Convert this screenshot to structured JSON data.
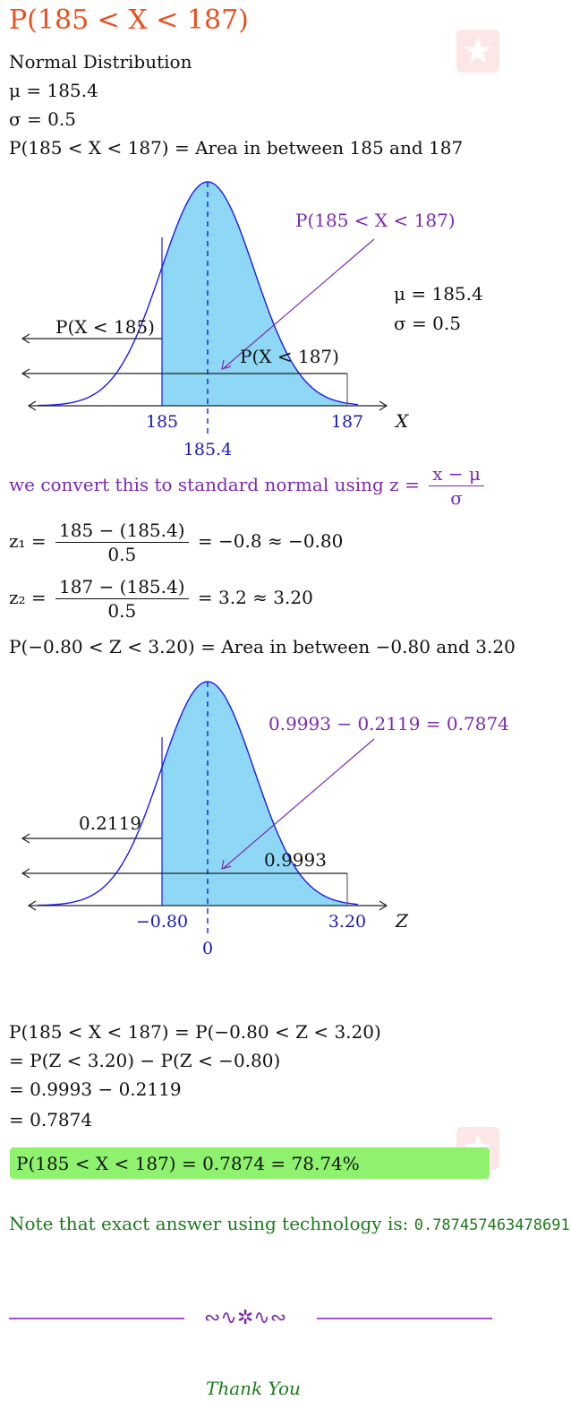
{
  "title": "P(185 < X < 187)",
  "distribution_name": "Normal Distribution",
  "mu_line": "μ = 185.4",
  "sigma_line": "σ = 0.5",
  "prob_area_line": "P(185 < X < 187) = Area in between 185 and 187",
  "plot1": {
    "top_label": "P(185 < X < 187)",
    "mu_label": "μ = 185.4",
    "sigma_label": "σ = 0.5",
    "left_label": "P(X < 185)",
    "right_label": "P(X < 187)",
    "tick_left": "185",
    "tick_right": "187",
    "tick_mean": "185.4",
    "axis_var": "X"
  },
  "convert_text": "we convert this to standard normal using",
  "z_formula": {
    "lhs": "z =",
    "num": "x − μ",
    "den": "σ"
  },
  "z1": {
    "lhs": "z₁ =",
    "num": "185 − (185.4)",
    "den": "0.5",
    "rhs": "= −0.8 ≈ −0.80"
  },
  "z2": {
    "lhs": "z₂ =",
    "num": "187 − (185.4)",
    "den": "0.5",
    "rhs": "= 3.2 ≈ 3.20"
  },
  "z_area_line": "P(−0.80 < Z < 3.20) = Area in between −0.80 and 3.20",
  "plot2": {
    "top_label": "0.9993 − 0.2119 = 0.7874",
    "left_label": "0.2119",
    "right_label": "0.9993",
    "tick_left": "−0.80",
    "tick_right": "3.20",
    "tick_mean": "0",
    "axis_var": "Z"
  },
  "steps": [
    "P(185 < X < 187) = P(−0.80 < Z < 3.20)",
    "= P(Z < 3.20) − P(Z < −0.80)",
    "= 0.9993 − 0.2119",
    "= 0.7874"
  ],
  "final_answer": "P(185 < X < 187) = 0.7874 = 78.74%",
  "note_text": "Note that exact answer using technology is:",
  "note_value": "0.787457463478691",
  "ornament": "∾∿✲∿∾",
  "thank_you": "Thank You",
  "colors": {
    "title": "#e8501e",
    "purple": "#7a2bb0",
    "curve": "#1a1aee",
    "shade": "#8ed8f6",
    "answer_box": "#8ff26f",
    "green_text": "#1c7a1c"
  }
}
